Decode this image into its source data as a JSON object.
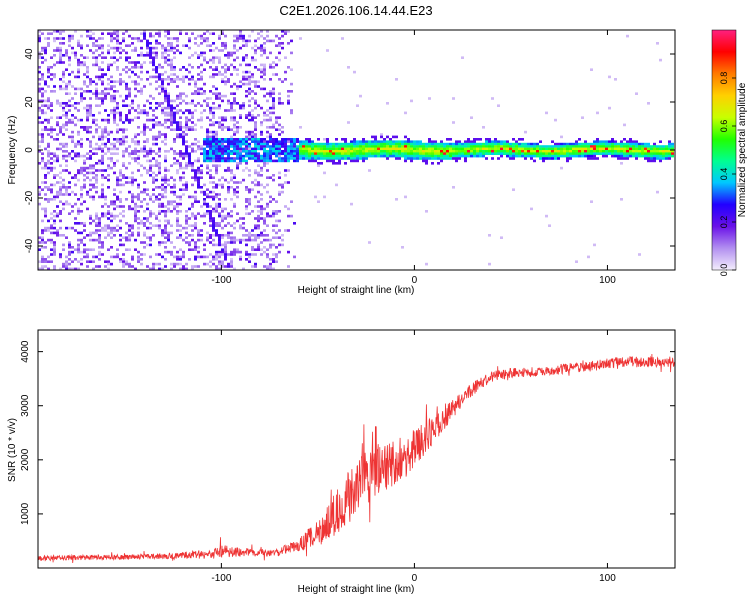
{
  "title": "C2E1.2026.106.14.44.E23",
  "chart_data": [
    {
      "type": "heatmap",
      "xlabel": "Height of straight line (km)",
      "ylabel": "Frequency (Hz)",
      "xlim": [
        -195,
        135
      ],
      "ylim": [
        -50,
        50
      ],
      "xticks": [
        -100,
        0,
        100
      ],
      "yticks": [
        -40,
        -20,
        0,
        20,
        40
      ],
      "colorbar": {
        "label": "Normalized spectral amplitude",
        "range": [
          0,
          1
        ],
        "ticks": [
          "0.0",
          "0.2",
          "0.4",
          "0.6",
          "0.8"
        ],
        "colormap": [
          "#f4eefc",
          "#b28ff0",
          "#6a11e8",
          "#2200ff",
          "#00c8ff",
          "#00ff90",
          "#22ff00",
          "#c8ff00",
          "#ffd000",
          "#ff7a00",
          "#ff0000",
          "#ff2080"
        ]
      },
      "features": {
        "noise_region_x": [
          -195,
          -60
        ],
        "signal_band_freq_hz": 0,
        "signal_band_halfwidth_hz": 3,
        "chirp_start": [
          -140,
          48
        ],
        "chirp_end": [
          -95,
          -50
        ]
      }
    },
    {
      "type": "line",
      "xlabel": "Height of straight line (km)",
      "ylabel": "SNR (10 * v/v)",
      "xlim": [
        -195,
        135
      ],
      "ylim": [
        0,
        4400
      ],
      "xticks": [
        -100,
        0,
        100
      ],
      "yticks": [
        1000,
        2000,
        3000,
        4000
      ],
      "color": "#ee3333",
      "x": [
        -195,
        -180,
        -160,
        -140,
        -120,
        -105,
        -100,
        -90,
        -80,
        -70,
        -60,
        -50,
        -40,
        -30,
        -20,
        -10,
        0,
        10,
        20,
        30,
        40,
        50,
        60,
        70,
        80,
        90,
        100,
        110,
        120,
        135
      ],
      "y": [
        180,
        190,
        200,
        210,
        230,
        260,
        300,
        290,
        280,
        300,
        420,
        650,
        1050,
        1500,
        1800,
        1950,
        2200,
        2550,
        2950,
        3300,
        3530,
        3600,
        3620,
        3640,
        3700,
        3720,
        3780,
        3820,
        3800,
        3820
      ],
      "spread": [
        80,
        80,
        80,
        80,
        110,
        150,
        220,
        130,
        110,
        130,
        200,
        450,
        700,
        850,
        800,
        700,
        600,
        500,
        300,
        200,
        180,
        160,
        150,
        150,
        150,
        160,
        160,
        170,
        160,
        160
      ]
    }
  ]
}
